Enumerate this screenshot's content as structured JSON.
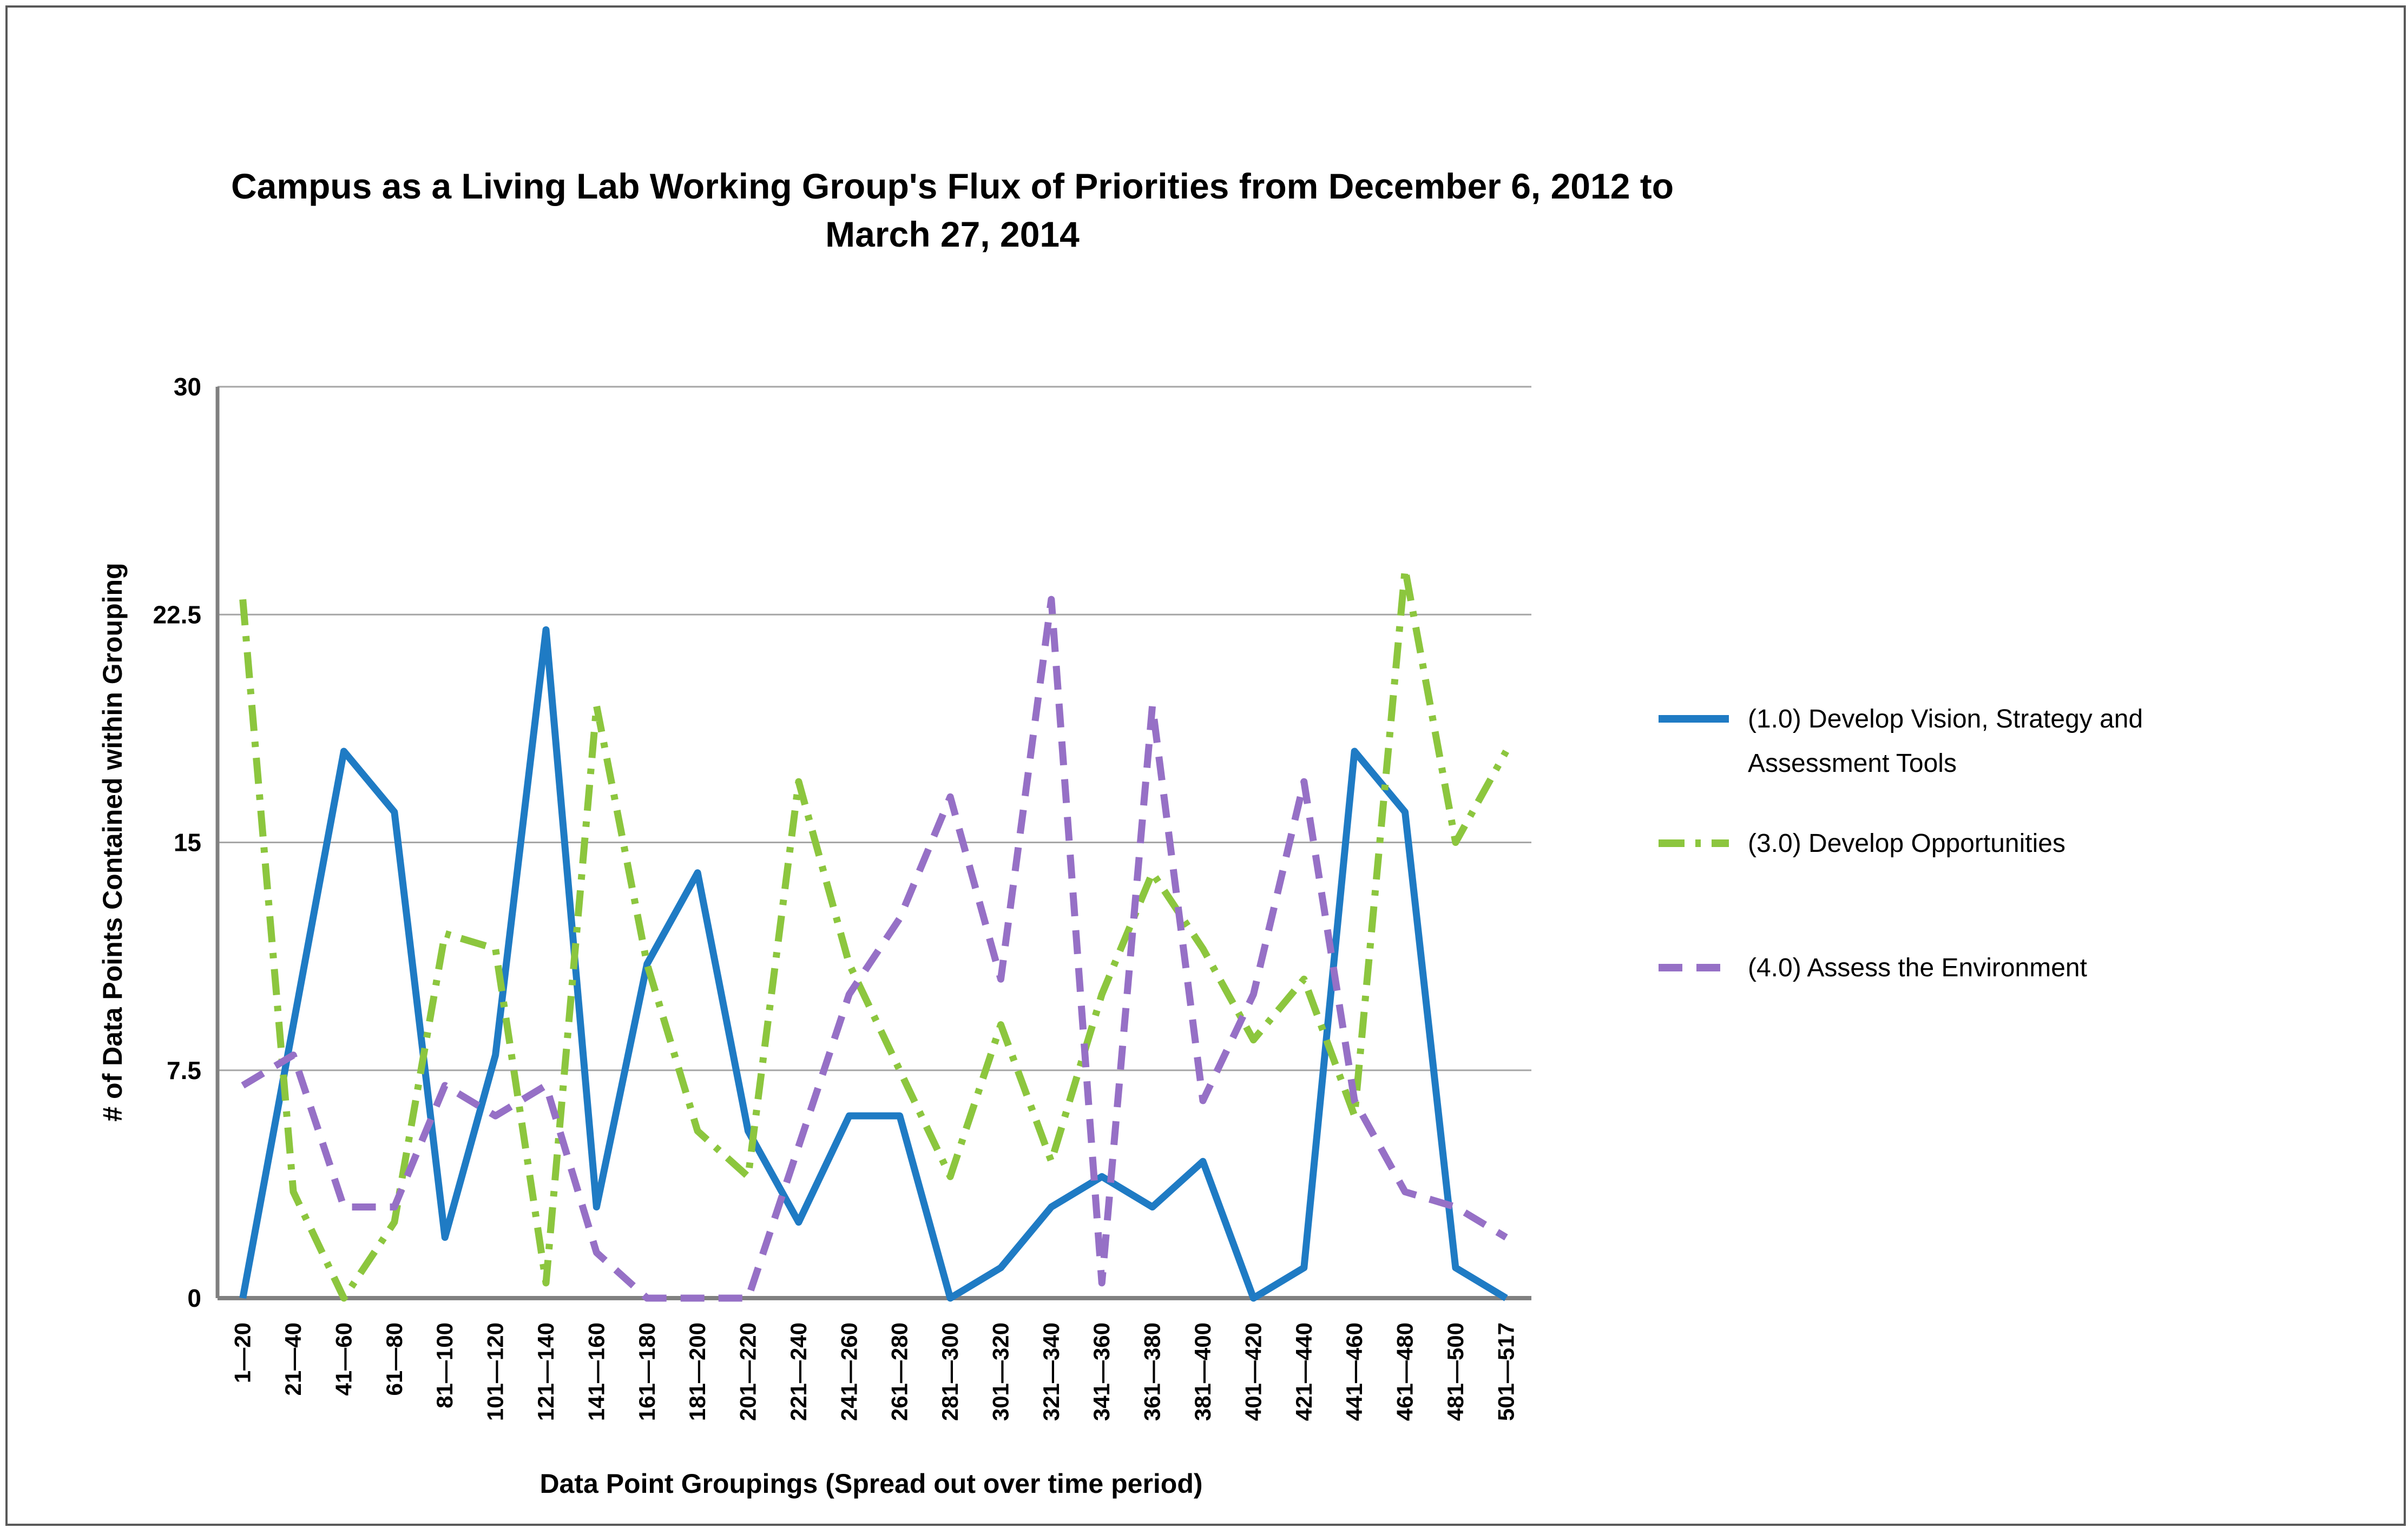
{
  "title_line1": "Campus as a Living Lab Working Group's Flux of Priorities from December 6, 2012 to",
  "title_line2": "March 27, 2014",
  "chart_data": {
    "type": "line",
    "title": "Campus as a Living Lab Working Group's Flux of Priorities from December 6, 2012 to March 27, 2014",
    "xlabel": "Data Point Groupings (Spread out over time period)",
    "ylabel": "# of Data Points Contained within Grouping",
    "ylim": [
      0,
      30
    ],
    "yticks": [
      0,
      7.5,
      15,
      22.5,
      30
    ],
    "ytick_labels": [
      "0",
      "7.5",
      "15",
      "22.5",
      "30"
    ],
    "grid": "horizontal",
    "legend_position": "right",
    "categories": [
      "1—20",
      "21—40",
      "41—60",
      "61—80",
      "81—100",
      "101—120",
      "121—140",
      "141—160",
      "161—180",
      "181—200",
      "201—220",
      "221—240",
      "241—260",
      "261—280",
      "281—300",
      "301—320",
      "321—340",
      "341—360",
      "361—380",
      "381—400",
      "401—420",
      "421—440",
      "441—460",
      "461—480",
      "481—500",
      "501—517"
    ],
    "series": [
      {
        "name": "(1.0)  Develop Vision, Strategy and Assessment Tools",
        "legend_line1": "(1.0)  Develop Vision, Strategy and",
        "legend_line2": "Assessment Tools",
        "color": "#1F7BC4",
        "line_style": "solid",
        "values": [
          0,
          9,
          18,
          16,
          2,
          8,
          22,
          3,
          11,
          14,
          5.5,
          2.5,
          6,
          6,
          0,
          1,
          3,
          4,
          3,
          4.5,
          0,
          1,
          18,
          16,
          1,
          0
        ]
      },
      {
        "name": "(3.0)  Develop Opportunities",
        "legend_line1": "(3.0)  Develop Opportunities",
        "legend_line2": "",
        "color": "#8CC63E",
        "line_style": "dash-dot",
        "values": [
          23,
          3.5,
          0,
          2.5,
          12,
          11.5,
          0.5,
          19.5,
          11,
          5.5,
          4,
          17,
          11,
          7.5,
          4,
          9,
          4.5,
          10,
          14,
          11.5,
          8.5,
          10.5,
          6,
          24,
          15,
          18
        ]
      },
      {
        "name": "(4.0)  Assess the Environment",
        "legend_line1": "(4.0)  Assess the Environment",
        "legend_line2": "",
        "color": "#9670C6",
        "line_style": "dashed",
        "values": [
          7,
          8,
          3,
          3,
          7,
          6,
          7,
          1.5,
          0,
          0,
          0,
          5,
          10,
          12.5,
          16.5,
          10.5,
          23,
          0.5,
          19.5,
          6.5,
          10,
          17,
          6.5,
          3.5,
          3,
          2
        ]
      }
    ]
  }
}
